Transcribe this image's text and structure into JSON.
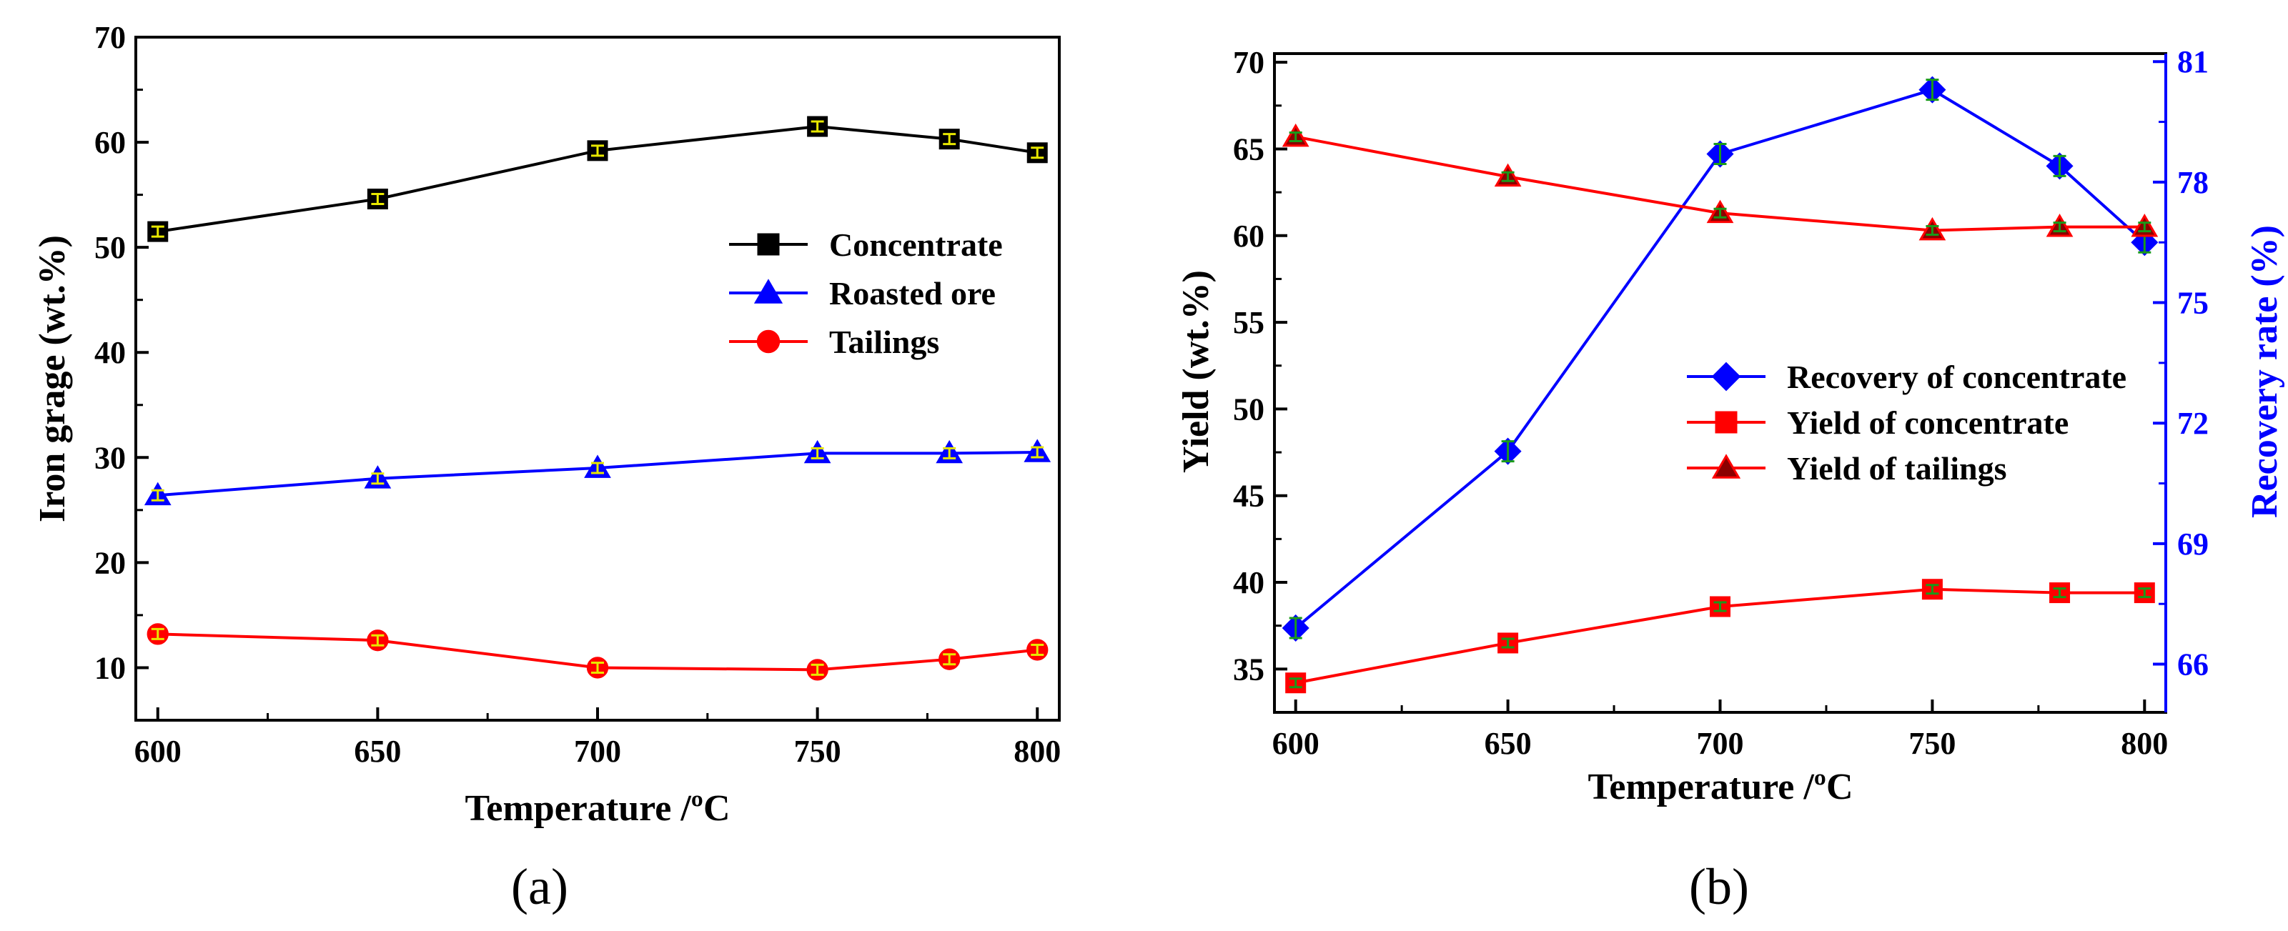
{
  "figure_labels": {
    "a": "(a)",
    "b": "(b)"
  },
  "chart_data": [
    {
      "id": "a",
      "type": "line",
      "xlabel": "Temperature /ºC",
      "ylabel": "Iron grage (wt.%)",
      "x": [
        600,
        650,
        700,
        750,
        780,
        800
      ],
      "xlim": [
        595,
        805
      ],
      "ylim": [
        5,
        70
      ],
      "xticks": [
        "600",
        "650",
        "700",
        "750",
        "800"
      ],
      "yticks": [
        "10",
        "20",
        "30",
        "40",
        "50",
        "60",
        "70"
      ],
      "legend_position": "center-right",
      "series": [
        {
          "name": "Concentrate",
          "marker": "square",
          "color": "#000000",
          "fill": "#000000",
          "values": [
            51.5,
            54.6,
            59.2,
            61.5,
            60.3,
            59.0
          ]
        },
        {
          "name": "Roasted ore",
          "marker": "triangle",
          "color": "#0000ff",
          "fill": "#0000ff",
          "values": [
            26.4,
            28.0,
            29.0,
            30.4,
            30.4,
            30.5
          ]
        },
        {
          "name": "Tailings",
          "marker": "circle",
          "color": "#ff0000",
          "fill": "#ff0000",
          "values": [
            13.2,
            12.6,
            10.0,
            9.8,
            10.8,
            11.7
          ]
        }
      ]
    },
    {
      "id": "b",
      "type": "line",
      "xlabel": "Temperature /ºC",
      "ylabel": "Yield (wt.%)",
      "y2label": "Recovery rate (%)",
      "x": [
        600,
        650,
        700,
        750,
        780,
        800
      ],
      "xlim": [
        595,
        805
      ],
      "ylim": [
        32.5,
        70.5
      ],
      "y2lim": [
        64.8,
        81.2
      ],
      "xticks": [
        "600",
        "650",
        "700",
        "750",
        "800"
      ],
      "yticks": [
        "35",
        "40",
        "45",
        "50",
        "55",
        "60",
        "65",
        "70"
      ],
      "y2ticks": [
        "66",
        "69",
        "72",
        "75",
        "78",
        "81"
      ],
      "legend_position": "center-right",
      "series": [
        {
          "name": "Recovery of concentrate",
          "axis": "right",
          "marker": "diamond",
          "color": "#0000ff",
          "fill": "#0000ff",
          "values": [
            66.9,
            71.3,
            78.7,
            80.3,
            78.4,
            76.5
          ]
        },
        {
          "name": "Yield of concentrate",
          "axis": "left",
          "marker": "square",
          "color": "#ff0000",
          "fill": "#ff0000",
          "values": [
            34.2,
            36.5,
            38.6,
            39.6,
            39.4,
            39.4
          ]
        },
        {
          "name": "Yield of tailings",
          "axis": "left",
          "marker": "triangle",
          "color": "#ff0000",
          "fill": "#8b0000",
          "values": [
            65.7,
            63.4,
            61.3,
            60.3,
            60.5,
            60.5
          ]
        }
      ]
    }
  ]
}
